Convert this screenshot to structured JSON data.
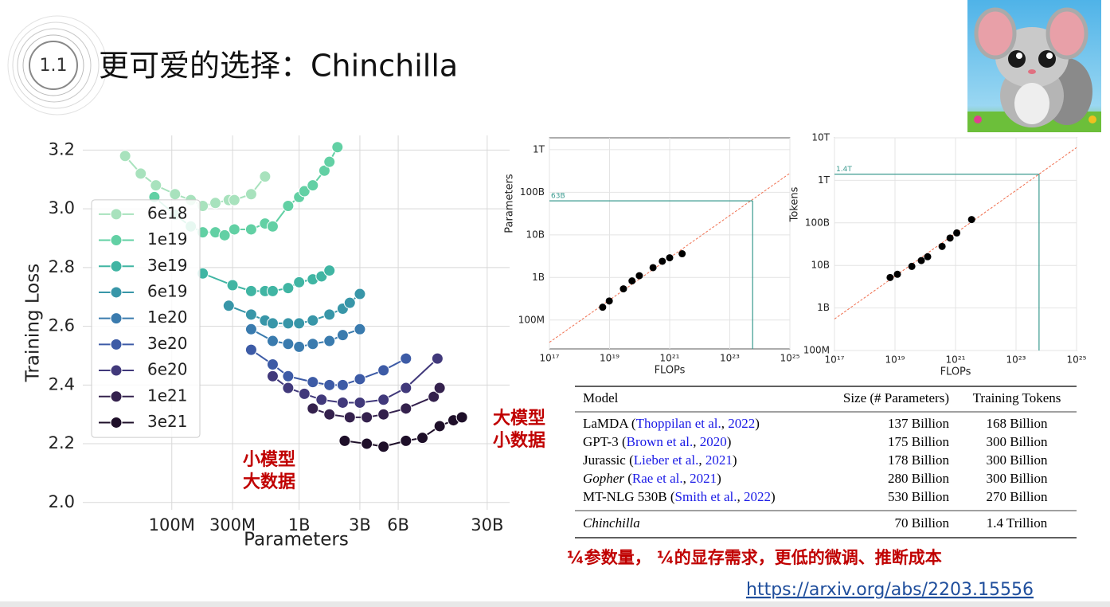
{
  "slide": {
    "section": "1.1",
    "title": "更可爱的选择：Chinchilla"
  },
  "chart_data": [
    {
      "type": "line",
      "x_label": "Parameters",
      "y_label": "Training Loss",
      "x_scale": "log",
      "grid": true,
      "legend": "center left",
      "xlim": [
        20000000.0,
        45000000000.0
      ],
      "xticks": [
        {
          "value": 100000000.0,
          "label": "100M"
        },
        {
          "value": 300000000.0,
          "label": "300M"
        },
        {
          "value": 1000000000.0,
          "label": "1B"
        },
        {
          "value": 3000000000.0,
          "label": "3B"
        },
        {
          "value": 6000000000.0,
          "label": "6B"
        },
        {
          "value": 30000000000.0,
          "label": "30B"
        }
      ],
      "ylim": [
        1.975,
        3.25
      ],
      "yticks": [
        {
          "value": 2,
          "label": "2.0"
        },
        2.2,
        2.4,
        2.6,
        2.8,
        {
          "value": 3,
          "label": "3.0"
        },
        3.2
      ],
      "series": [
        {
          "name": "6e18",
          "color": "#a8e2bd",
          "x": [
            43000000.0,
            57000000.0,
            75000000.0,
            106000000.0,
            141000000.0,
            175000000.0,
            220000000.0,
            280000000.0,
            310000000.0,
            420000000.0,
            540000000.0
          ],
          "values": [
            3.18,
            3.12,
            3.08,
            3.05,
            3.03,
            3.01,
            3.02,
            3.03,
            3.03,
            3.05,
            3.11
          ]
        },
        {
          "name": "1e19",
          "color": "#62d0a4",
          "x": [
            73000000.0,
            106000000.0,
            141000000.0,
            175000000.0,
            220000000.0,
            260000000.0,
            310000000.0,
            420000000.0,
            540000000.0,
            620000000.0,
            820000000.0,
            1000000000.0,
            1100000000.0,
            1280000000.0,
            1580000000.0,
            1730000000.0,
            2000000000.0
          ],
          "values": [
            3.04,
            2.98,
            2.94,
            2.92,
            2.92,
            2.91,
            2.93,
            2.93,
            2.95,
            2.94,
            3.01,
            3.04,
            3.06,
            3.08,
            3.13,
            3.16,
            3.21
          ]
        },
        {
          "name": "3e19",
          "color": "#40b5a3",
          "x": [
            175000000.0,
            300000000.0,
            420000000.0,
            540000000.0,
            620000000.0,
            820000000.0,
            1000000000.0,
            1280000000.0,
            1500000000.0,
            1730000000.0
          ],
          "values": [
            2.78,
            2.74,
            2.72,
            2.72,
            2.72,
            2.73,
            2.75,
            2.76,
            2.77,
            2.79
          ]
        },
        {
          "name": "6e19",
          "color": "#3896a8",
          "x": [
            280000000.0,
            420000000.0,
            540000000.0,
            620000000.0,
            820000000.0,
            1000000000.0,
            1280000000.0,
            1730000000.0,
            2200000000.0,
            2500000000.0,
            3000000000.0
          ],
          "values": [
            2.67,
            2.64,
            2.62,
            2.61,
            2.61,
            2.61,
            2.62,
            2.64,
            2.66,
            2.68,
            2.71
          ]
        },
        {
          "name": "1e20",
          "color": "#3a7bae",
          "x": [
            420000000.0,
            620000000.0,
            820000000.0,
            1000000000.0,
            1280000000.0,
            1730000000.0,
            2200000000.0,
            3000000000.0
          ],
          "values": [
            2.59,
            2.55,
            2.54,
            2.53,
            2.54,
            2.55,
            2.57,
            2.59
          ]
        },
        {
          "name": "3e20",
          "color": "#3d5ba6",
          "x": [
            420000000.0,
            620000000.0,
            820000000.0,
            1280000000.0,
            1730000000.0,
            2200000000.0,
            3000000000.0,
            4600000000.0,
            6900000000.0
          ],
          "values": [
            2.52,
            2.47,
            2.43,
            2.41,
            2.4,
            2.4,
            2.42,
            2.45,
            2.49
          ]
        },
        {
          "name": "6e20",
          "color": "#41397b",
          "x": [
            620000000.0,
            820000000.0,
            1100000000.0,
            1500000000.0,
            2200000000.0,
            3000000000.0,
            4600000000.0,
            6900000000.0,
            12200000000.0
          ],
          "values": [
            2.43,
            2.39,
            2.37,
            2.35,
            2.34,
            2.34,
            2.35,
            2.39,
            2.49
          ]
        },
        {
          "name": "1e21",
          "color": "#34214d",
          "x": [
            1280000000.0,
            1730000000.0,
            2500000000.0,
            3400000000.0,
            4600000000.0,
            6900000000.0,
            11400000000.0,
            12700000000.0
          ],
          "values": [
            2.32,
            2.3,
            2.29,
            2.29,
            2.3,
            2.32,
            2.36,
            2.39
          ]
        },
        {
          "name": "3e21",
          "color": "#1e0f29",
          "x": [
            2280000000.0,
            3400000000.0,
            4600000000.0,
            6900000000.0,
            9300000000.0,
            12700000000.0,
            16300000000.0,
            19000000000.0
          ],
          "values": [
            2.21,
            2.2,
            2.19,
            2.21,
            2.22,
            2.26,
            2.28,
            2.29
          ]
        }
      ],
      "annotations": [
        {
          "text": [
            "小模型",
            "大数据"
          ],
          "color": "#c00000"
        },
        {
          "text": [
            "大模型",
            "小数据"
          ],
          "color": "#c00000"
        }
      ]
    },
    {
      "type": "scatter",
      "x_label": "FLOPs",
      "y_label": "Parameters",
      "x_scale": "log",
      "y_scale": "log",
      "grid": true,
      "color": "#000000",
      "xlim": [
        1e+17,
        1e+25
      ],
      "xticks": [
        {
          "value": 1e+17,
          "label": "10¹⁷"
        },
        {
          "value": 1e+19,
          "label": "10¹⁹"
        },
        {
          "value": 1e+21,
          "label": "10²¹"
        },
        {
          "value": 1e+23,
          "label": "10²³"
        },
        {
          "value": 1e+25,
          "label": "10²⁵"
        }
      ],
      "ylim": [
        21000000.0,
        1900000000000.0
      ],
      "yticks": [
        {
          "value": 100000000.0,
          "label": "100M"
        },
        {
          "value": 1000000000.0,
          "label": "1B"
        },
        {
          "value": 10000000000.0,
          "label": "10B"
        },
        {
          "value": 100000000000.0,
          "label": "100B"
        },
        {
          "value": 1000000000000.0,
          "label": "1T"
        }
      ],
      "x": [
        5.9e+18,
        9.8e+18,
        2.9e+19,
        5.6e+19,
        9.8e+19,
        2.8e+20,
        5.7e+20,
        1e+21,
        2.6e+21
      ],
      "values": [
        200000000.0,
        280000000.0,
        540000000.0,
        830000000.0,
        1100000000.0,
        1700000000.0,
        2400000000.0,
        2900000000.0,
        3600000000.0
      ],
      "fit": {
        "color": "#f07050",
        "x": [
          1e+17,
          1e+25
        ],
        "values": [
          30000000.0,
          280000000000.0
        ]
      },
      "reference": {
        "color": "#3a9a8f",
        "x": 5.76e+23,
        "y": 63000000000.0,
        "label": "63B"
      }
    },
    {
      "type": "scatter",
      "x_label": "FLOPs",
      "y_label": "Tokens",
      "x_scale": "log",
      "y_scale": "log",
      "grid": true,
      "color": "#000000",
      "xlim": [
        1e+17,
        1e+25
      ],
      "xticks": [
        {
          "value": 1e+17,
          "label": "10¹⁷"
        },
        {
          "value": 1e+19,
          "label": "10¹⁹"
        },
        {
          "value": 1e+21,
          "label": "10²¹"
        },
        {
          "value": 1e+23,
          "label": "10²³"
        },
        {
          "value": 1e+25,
          "label": "10²⁵"
        }
      ],
      "ylim": [
        100000000.0,
        10000000000000.0
      ],
      "yticks": [
        {
          "value": 100000000.0,
          "label": "100M"
        },
        {
          "value": 1000000000.0,
          "label": "1B"
        },
        {
          "value": 10000000000.0,
          "label": "10B"
        },
        {
          "value": 100000000000.0,
          "label": "100B"
        },
        {
          "value": 1000000000000.0,
          "label": "1T"
        },
        {
          "value": 10000000000000.0,
          "label": "10T"
        }
      ],
      "x": [
        6.9e+18,
        1.2e+19,
        3.6e+19,
        7.4e+19,
        1.2e+20,
        3.6e+20,
        6.6e+20,
        1.1e+21,
        3.4e+21
      ],
      "values": [
        5200000000.0,
        6200000000.0,
        9500000000.0,
        13000000000.0,
        16000000000.0,
        28000000000.0,
        44000000000.0,
        58000000000.0,
        120000000000.0
      ],
      "fit": {
        "color": "#f07050",
        "x": [
          1e+17,
          1e+25
        ],
        "values": [
          550000000.0,
          5900000000000.0
        ]
      },
      "reference": {
        "color": "#3a9a8f",
        "x": 5.76e+23,
        "y": 1400000000000.0,
        "label": "1.4T"
      }
    }
  ],
  "table": {
    "header": [
      "Model",
      "Size (# Parameters)",
      "Training Tokens"
    ],
    "rows": [
      [
        [
          {
            "text": "LaMDA ("
          },
          {
            "text": "Thoppilan et al.",
            "style": "link"
          },
          {
            "text": ", "
          },
          {
            "text": "2022",
            "style": "link"
          },
          {
            "text": ")"
          }
        ],
        "137 Billion",
        "168 Billion"
      ],
      [
        [
          {
            "text": "GPT-3 ("
          },
          {
            "text": "Brown et al.",
            "style": "link"
          },
          {
            "text": ", "
          },
          {
            "text": "2020",
            "style": "link"
          },
          {
            "text": ")"
          }
        ],
        "175 Billion",
        "300 Billion"
      ],
      [
        [
          {
            "text": "Jurassic ("
          },
          {
            "text": "Lieber et al.",
            "style": "link"
          },
          {
            "text": ", "
          },
          {
            "text": "2021",
            "style": "link"
          },
          {
            "text": ")"
          }
        ],
        "178 Billion",
        "300 Billion"
      ],
      [
        [
          {
            "text": "Gopher",
            "style": "italic"
          },
          {
            "text": " ("
          },
          {
            "text": "Rae et al.",
            "style": "link"
          },
          {
            "text": ", "
          },
          {
            "text": "2021",
            "style": "link"
          },
          {
            "text": ")"
          }
        ],
        "280 Billion",
        "300 Billion"
      ],
      [
        [
          {
            "text": "MT-NLG 530B ("
          },
          {
            "text": "Smith et al.",
            "style": "link"
          },
          {
            "text": ", "
          },
          {
            "text": "2022",
            "style": "link"
          },
          {
            "text": ")"
          }
        ],
        "530 Billion",
        "270 Billion"
      ],
      [
        [
          {
            "text": "Chinchilla",
            "style": "italic"
          }
        ],
        "70 Billion",
        "1.4 Trillion"
      ]
    ]
  },
  "summary": "¼参数量， ¼的显存需求，更低的微调、推断成本",
  "link": "https://arxiv.org/abs/2203.15556"
}
